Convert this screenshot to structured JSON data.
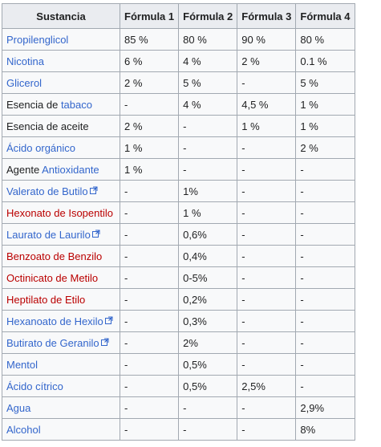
{
  "table": {
    "headers": [
      "Sustancia",
      "Fórmula 1",
      "Fórmula 2",
      "Fórmula 3",
      "Fórmula 4"
    ],
    "rows": [
      {
        "name_prefix": "",
        "name": "Propilenglicol",
        "link": "blue",
        "external": false,
        "values": [
          "85 %",
          "80 %",
          "90 %",
          "80 %"
        ]
      },
      {
        "name_prefix": "",
        "name": "Nicotina",
        "link": "blue",
        "external": false,
        "values": [
          "6 %",
          "4 %",
          "2 %",
          "0.1 %"
        ]
      },
      {
        "name_prefix": "",
        "name": "Glicerol",
        "link": "blue",
        "external": false,
        "values": [
          "2 %",
          "5 %",
          "-",
          "5 %"
        ]
      },
      {
        "name_prefix": "Esencia de ",
        "name": "tabaco",
        "link": "blue",
        "external": false,
        "values": [
          "-",
          "4 %",
          "4,5 %",
          "1 %"
        ]
      },
      {
        "name_prefix": "",
        "name": "Esencia de aceite",
        "link": "plain",
        "external": false,
        "values": [
          "2 %",
          "-",
          "1 %",
          "1 %"
        ]
      },
      {
        "name_prefix": "",
        "name": "Ácido orgánico",
        "link": "blue",
        "external": false,
        "values": [
          "1 %",
          "-",
          "-",
          "2 %"
        ]
      },
      {
        "name_prefix": "Agente ",
        "name": "Antioxidante",
        "link": "blue",
        "external": false,
        "values": [
          "1 %",
          "-",
          "-",
          "-"
        ]
      },
      {
        "name_prefix": "",
        "name": "Valerato de Butilo",
        "link": "blue",
        "external": true,
        "values": [
          "-",
          "1%",
          "-",
          "-"
        ]
      },
      {
        "name_prefix": "",
        "name": "Hexonato de Isopentilo",
        "link": "red",
        "external": false,
        "values": [
          "-",
          "1 %",
          "-",
          "-"
        ]
      },
      {
        "name_prefix": "",
        "name": "Laurato de Laurilo",
        "link": "blue",
        "external": true,
        "values": [
          "-",
          "0,6%",
          "-",
          "-"
        ]
      },
      {
        "name_prefix": "",
        "name": "Benzoato de Benzilo",
        "link": "red",
        "external": false,
        "values": [
          "-",
          "0,4%",
          "-",
          "-"
        ]
      },
      {
        "name_prefix": "",
        "name": "Octinicato de Metilo",
        "link": "red",
        "external": false,
        "values": [
          "-",
          "0-5%",
          "-",
          "-"
        ]
      },
      {
        "name_prefix": "",
        "name": "Heptilato de Etilo",
        "link": "red",
        "external": false,
        "values": [
          "-",
          "0,2%",
          "-",
          "-"
        ]
      },
      {
        "name_prefix": "",
        "name": "Hexanoato de Hexilo",
        "link": "blue",
        "external": true,
        "values": [
          "-",
          "0,3%",
          "-",
          "-"
        ]
      },
      {
        "name_prefix": "",
        "name": "Butirato de Geranilo",
        "link": "blue",
        "external": true,
        "values": [
          "-",
          "2%",
          "-",
          "-"
        ]
      },
      {
        "name_prefix": "",
        "name": "Mentol",
        "link": "blue",
        "external": false,
        "values": [
          "-",
          "0,5%",
          "-",
          "-"
        ]
      },
      {
        "name_prefix": "",
        "name": "Ácido cítrico",
        "link": "blue",
        "external": false,
        "values": [
          "-",
          "0,5%",
          "2,5%",
          "-"
        ]
      },
      {
        "name_prefix": "",
        "name": "Agua",
        "link": "blue",
        "external": false,
        "values": [
          "-",
          "-",
          "-",
          "2,9%"
        ]
      },
      {
        "name_prefix": "",
        "name": "Alcohol",
        "link": "blue",
        "external": false,
        "values": [
          "-",
          "-",
          "-",
          "8%"
        ]
      }
    ]
  },
  "colors": {
    "link_blue": "#3366cc",
    "link_red": "#ba0000",
    "text": "#202122",
    "header_bg": "#eaecf0",
    "cell_bg": "#f8f9fa",
    "border": "#a2a9b1"
  },
  "icons": {
    "external_link": "external-link-icon"
  }
}
